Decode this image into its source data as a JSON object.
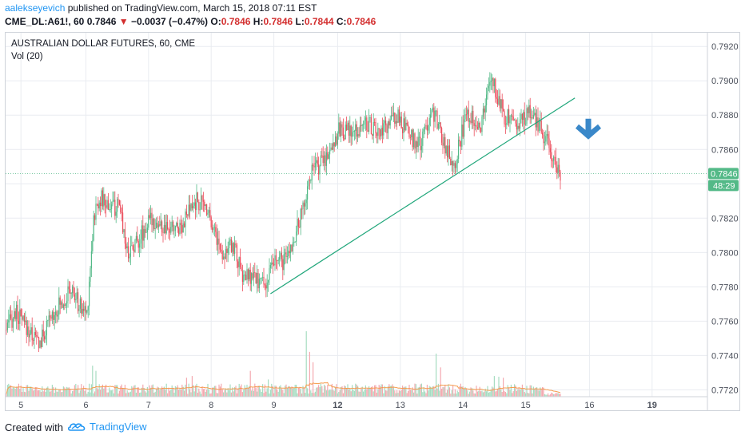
{
  "header": {
    "author": "aalekseyevich",
    "published": "published on TradingView.com, March 15, 2018 07:11 EST",
    "symbol": "CME_DL:A61!, 60",
    "last": "0.7846",
    "change": "−0.0037 (−0.47%)",
    "o_label": "O:",
    "o_value": "0.7846",
    "h_label": "H:",
    "h_value": "0.7846",
    "l_label": "L:",
    "l_value": "0.7844",
    "c_label": "C:",
    "c_value": "0.7846"
  },
  "chart_data": {
    "type": "candlestick",
    "title": "AUSTRALIAN DOLLAR FUTURES, 60, CME",
    "indicator": "Vol (20)",
    "y_ticks": [
      "0.7920",
      "0.7900",
      "0.7880",
      "0.7860",
      "0.7840",
      "0.7820",
      "0.7800",
      "0.7780",
      "0.7760",
      "0.7740",
      "0.7720"
    ],
    "ylim": [
      0.7716,
      0.7928
    ],
    "x_ticks": [
      {
        "label": "5",
        "i": 13
      },
      {
        "label": "6",
        "i": 71
      },
      {
        "label": "7",
        "i": 127
      },
      {
        "label": "8",
        "i": 183
      },
      {
        "label": "9",
        "i": 239
      },
      {
        "label": "12",
        "i": 296
      },
      {
        "label": "13",
        "i": 352
      },
      {
        "label": "14",
        "i": 408
      },
      {
        "label": "15",
        "i": 464
      },
      {
        "label": "16",
        "i": 521
      },
      {
        "label": "19",
        "i": 577
      }
    ],
    "current_price": "0.7846",
    "countdown": "48:29",
    "anchors": [
      [
        0,
        0.7755
      ],
      [
        8,
        0.7765
      ],
      [
        18,
        0.7756
      ],
      [
        30,
        0.7747
      ],
      [
        42,
        0.7765
      ],
      [
        58,
        0.7778
      ],
      [
        66,
        0.7768
      ],
      [
        72,
        0.7765
      ],
      [
        78,
        0.782
      ],
      [
        83,
        0.7832
      ],
      [
        90,
        0.7828
      ],
      [
        102,
        0.7825
      ],
      [
        108,
        0.78
      ],
      [
        118,
        0.7808
      ],
      [
        130,
        0.782
      ],
      [
        142,
        0.7812
      ],
      [
        156,
        0.7816
      ],
      [
        170,
        0.783
      ],
      [
        180,
        0.7826
      ],
      [
        192,
        0.78
      ],
      [
        204,
        0.7804
      ],
      [
        210,
        0.7786
      ],
      [
        220,
        0.7785
      ],
      [
        232,
        0.7782
      ],
      [
        240,
        0.7795
      ],
      [
        250,
        0.7795
      ],
      [
        262,
        0.7818
      ],
      [
        272,
        0.7846
      ],
      [
        285,
        0.7855
      ],
      [
        298,
        0.7872
      ],
      [
        310,
        0.7869
      ],
      [
        322,
        0.7876
      ],
      [
        334,
        0.7868
      ],
      [
        348,
        0.788
      ],
      [
        360,
        0.7868
      ],
      [
        370,
        0.7862
      ],
      [
        380,
        0.7885
      ],
      [
        392,
        0.7862
      ],
      [
        400,
        0.7852
      ],
      [
        412,
        0.7882
      ],
      [
        424,
        0.7874
      ],
      [
        433,
        0.7902
      ],
      [
        445,
        0.788
      ],
      [
        458,
        0.7875
      ],
      [
        468,
        0.7882
      ],
      [
        476,
        0.7874
      ],
      [
        484,
        0.7862
      ],
      [
        490,
        0.7853
      ],
      [
        495,
        0.7845
      ]
    ],
    "volume": {
      "ylim": [
        0,
        220
      ],
      "spikes": [
        {
          "i": 77,
          "v": 90
        },
        {
          "i": 80,
          "v": 75
        },
        {
          "i": 161,
          "v": 55
        },
        {
          "i": 166,
          "v": 60
        },
        {
          "i": 218,
          "v": 75
        },
        {
          "i": 234,
          "v": 50
        },
        {
          "i": 268,
          "v": 190
        },
        {
          "i": 271,
          "v": 130
        },
        {
          "i": 274,
          "v": 100
        },
        {
          "i": 384,
          "v": 125
        },
        {
          "i": 388,
          "v": 85
        },
        {
          "i": 436,
          "v": 60
        },
        {
          "i": 440,
          "v": 58
        },
        {
          "i": 444,
          "v": 55
        }
      ]
    },
    "trendline": {
      "from": {
        "i": 236,
        "y": 0.7776
      },
      "to": {
        "i": 508,
        "y": 0.789
      }
    },
    "arrow": {
      "direction": "down",
      "i": 520,
      "y": 0.787
    },
    "colors": {
      "up": "#53b987",
      "down": "#eb4d5c",
      "trend": "#1fa67a",
      "arrow": "#3a88c9",
      "vol_up": "#a6dcc1",
      "vol_down": "#f4a9b0",
      "ma": "#f59b4c",
      "price_tag": "#53b987",
      "grid": "#e9ecf1"
    }
  },
  "footer": {
    "created_with": "Created with",
    "brand": "TradingView"
  }
}
